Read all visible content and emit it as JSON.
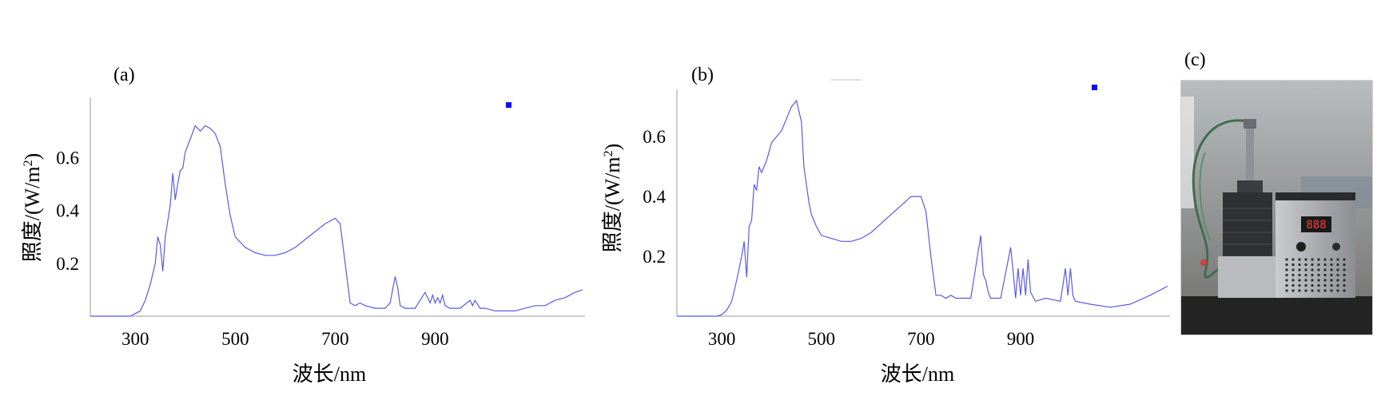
{
  "chart_data": [
    {
      "type": "line",
      "panel_label": "(a)",
      "xlabel": "波长/nm",
      "ylabel_prefix": "照度/(W/m",
      "ylabel_sup": "2",
      "ylabel_suffix": ")",
      "xticks": [
        "300",
        "500",
        "700",
        "900"
      ],
      "yticks": [
        "0.2",
        "0.4",
        "0.6"
      ],
      "xlim": [
        210,
        1200
      ],
      "ylim": [
        0,
        0.8
      ],
      "legend": "top-right",
      "series": [
        {
          "color": "#5a5ae6",
          "x": [
            210,
            290,
            300,
            310,
            320,
            330,
            340,
            345,
            350,
            355,
            360,
            365,
            370,
            375,
            380,
            385,
            390,
            395,
            400,
            410,
            420,
            430,
            440,
            450,
            460,
            470,
            480,
            490,
            500,
            520,
            540,
            560,
            580,
            600,
            620,
            640,
            660,
            680,
            700,
            710,
            720,
            730,
            740,
            750,
            760,
            780,
            800,
            810,
            820,
            825,
            830,
            840,
            860,
            880,
            885,
            890,
            895,
            900,
            905,
            910,
            915,
            920,
            930,
            950,
            970,
            975,
            980,
            990,
            1000,
            1020,
            1040,
            1060,
            1080,
            1100,
            1120,
            1140,
            1160,
            1180,
            1195
          ],
          "y": [
            0,
            0,
            0.01,
            0.02,
            0.06,
            0.12,
            0.2,
            0.3,
            0.27,
            0.17,
            0.3,
            0.36,
            0.42,
            0.54,
            0.44,
            0.5,
            0.55,
            0.56,
            0.62,
            0.67,
            0.72,
            0.7,
            0.72,
            0.71,
            0.69,
            0.64,
            0.5,
            0.38,
            0.3,
            0.26,
            0.24,
            0.23,
            0.23,
            0.24,
            0.26,
            0.29,
            0.32,
            0.35,
            0.37,
            0.35,
            0.2,
            0.05,
            0.04,
            0.05,
            0.04,
            0.03,
            0.03,
            0.05,
            0.15,
            0.11,
            0.04,
            0.03,
            0.03,
            0.09,
            0.07,
            0.05,
            0.08,
            0.05,
            0.07,
            0.05,
            0.08,
            0.04,
            0.03,
            0.03,
            0.06,
            0.04,
            0.06,
            0.03,
            0.03,
            0.02,
            0.02,
            0.02,
            0.03,
            0.04,
            0.04,
            0.06,
            0.07,
            0.09,
            0.1
          ]
        }
      ]
    },
    {
      "type": "line",
      "panel_label": "(b)",
      "xlabel": "波长/nm",
      "ylabel_prefix": "照度/(W/m",
      "ylabel_sup": "2",
      "ylabel_suffix": ")",
      "xticks": [
        "300",
        "500",
        "700",
        "900"
      ],
      "yticks": [
        "0.2",
        "0.4",
        "0.6"
      ],
      "xlim": [
        210,
        1200
      ],
      "ylim": [
        0,
        0.75
      ],
      "legend": "top-right",
      "series": [
        {
          "color": "#5a5ae6",
          "x": [
            210,
            290,
            300,
            310,
            320,
            330,
            340,
            345,
            350,
            355,
            360,
            365,
            370,
            375,
            380,
            390,
            400,
            410,
            420,
            430,
            440,
            450,
            460,
            465,
            470,
            475,
            480,
            490,
            500,
            520,
            540,
            560,
            580,
            600,
            620,
            640,
            660,
            680,
            700,
            710,
            720,
            730,
            740,
            750,
            760,
            770,
            780,
            800,
            820,
            825,
            830,
            835,
            840,
            860,
            880,
            885,
            890,
            895,
            900,
            905,
            910,
            915,
            920,
            930,
            950,
            980,
            990,
            995,
            1000,
            1005,
            1010,
            1040,
            1080,
            1120,
            1160,
            1195
          ],
          "y": [
            0,
            0,
            0.005,
            0.02,
            0.05,
            0.12,
            0.2,
            0.25,
            0.13,
            0.3,
            0.32,
            0.44,
            0.42,
            0.5,
            0.48,
            0.52,
            0.58,
            0.6,
            0.62,
            0.66,
            0.7,
            0.72,
            0.65,
            0.5,
            0.44,
            0.38,
            0.34,
            0.3,
            0.27,
            0.26,
            0.25,
            0.25,
            0.26,
            0.28,
            0.31,
            0.34,
            0.37,
            0.4,
            0.4,
            0.35,
            0.2,
            0.07,
            0.07,
            0.06,
            0.07,
            0.06,
            0.06,
            0.06,
            0.27,
            0.14,
            0.12,
            0.08,
            0.06,
            0.06,
            0.23,
            0.15,
            0.06,
            0.16,
            0.07,
            0.16,
            0.07,
            0.19,
            0.08,
            0.05,
            0.06,
            0.05,
            0.16,
            0.07,
            0.16,
            0.07,
            0.05,
            0.04,
            0.03,
            0.04,
            0.07,
            0.1
          ]
        }
      ]
    }
  ],
  "photo": {
    "panel_label": "(c)",
    "display": "888",
    "colors": {
      "bg_top": "#b9bdc0",
      "bg_bottom": "#6f6f6c",
      "body": "#9a9c9f",
      "heatsink": "#2e3034",
      "cable": "#3f6e4e",
      "table": "#242424"
    }
  }
}
